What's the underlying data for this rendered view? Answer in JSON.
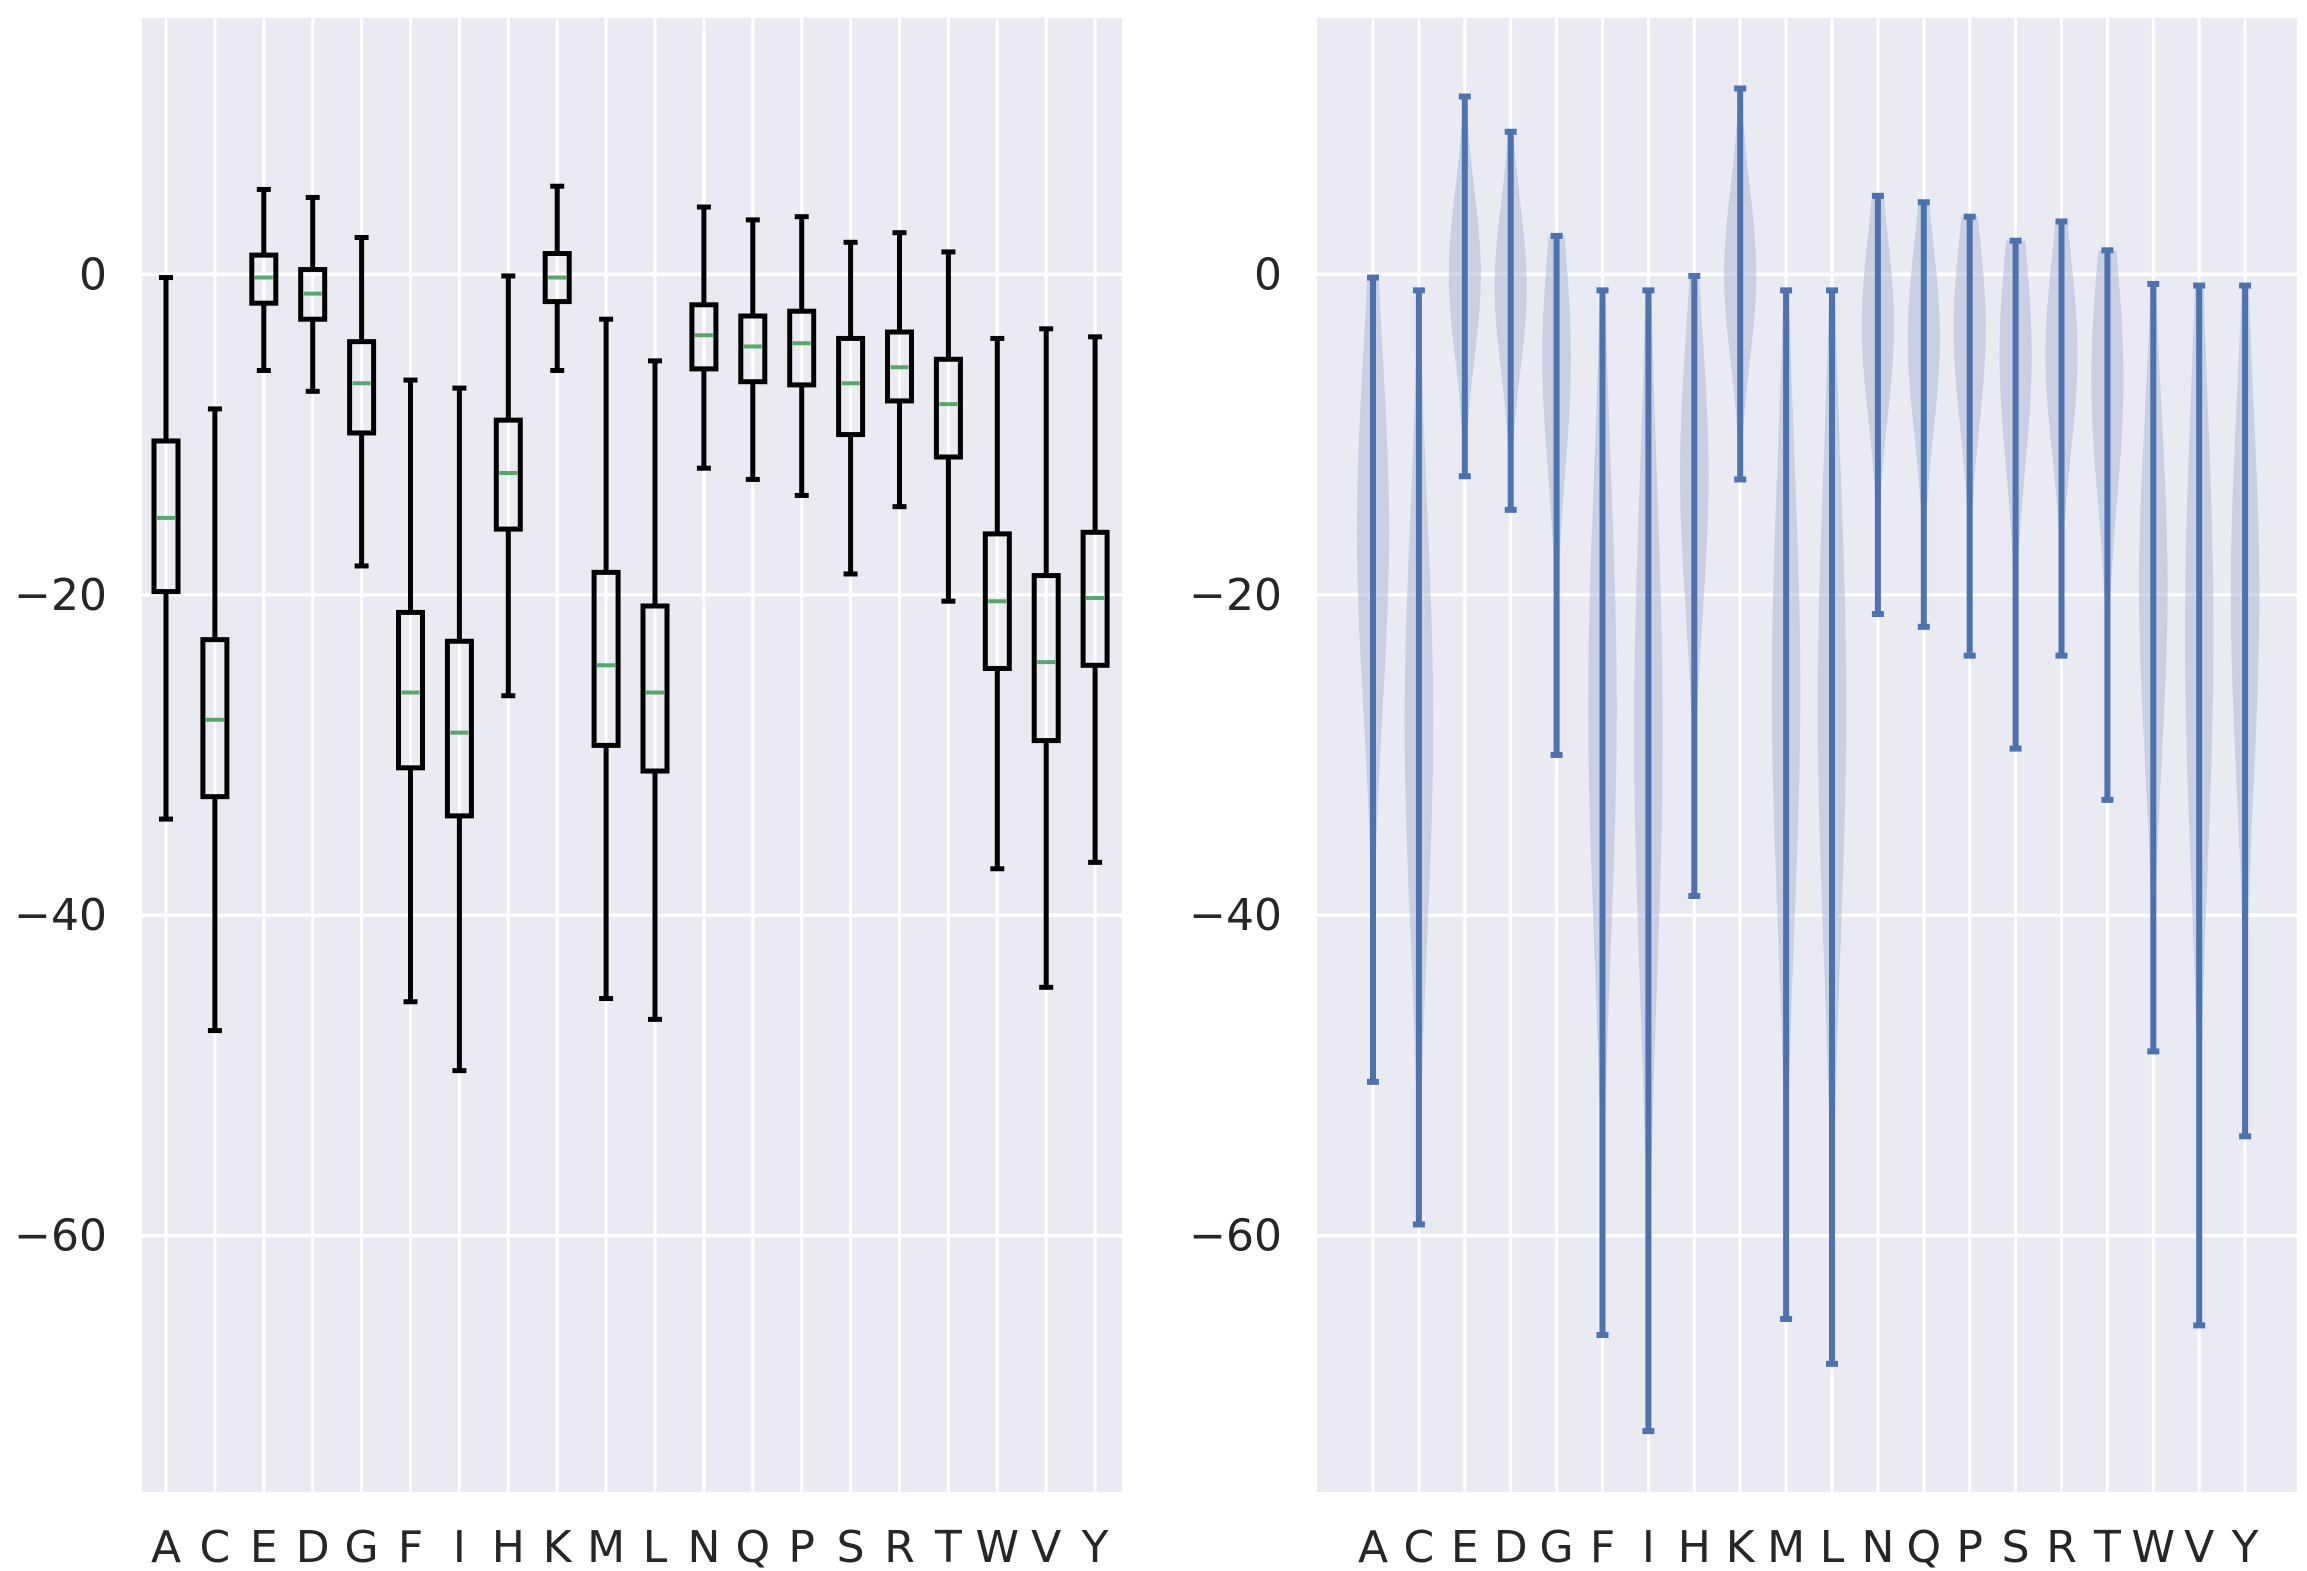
{
  "chart_data": [
    {
      "type": "box",
      "title": "",
      "xlabel": "",
      "ylabel": "",
      "ylim": [
        -76,
        16
      ],
      "yticks": [
        0,
        -20,
        -40,
        -60
      ],
      "ytick_labels": [
        "0",
        "−20",
        "−40",
        "−60"
      ],
      "grid": true,
      "categories": [
        "A",
        "C",
        "E",
        "D",
        "G",
        "F",
        "I",
        "H",
        "K",
        "M",
        "L",
        "N",
        "Q",
        "P",
        "S",
        "R",
        "T",
        "W",
        "V",
        "Y"
      ],
      "boxes": [
        {
          "min": -34,
          "q1": -19.8,
          "median": -15.2,
          "q3": -10.4,
          "max": -0.2
        },
        {
          "min": -47.2,
          "q1": -32.6,
          "median": -27.8,
          "q3": -22.8,
          "max": -8.4
        },
        {
          "min": -6,
          "q1": -1.8,
          "median": -0.2,
          "q3": 1.2,
          "max": 5.3
        },
        {
          "min": -7.3,
          "q1": -2.8,
          "median": -1.2,
          "q3": 0.3,
          "max": 4.8
        },
        {
          "min": -18.2,
          "q1": -9.9,
          "median": -6.8,
          "q3": -4.2,
          "max": 2.3
        },
        {
          "min": -45.4,
          "q1": -30.8,
          "median": -26.1,
          "q3": -21.1,
          "max": -6.6
        },
        {
          "min": -49.7,
          "q1": -33.8,
          "median": -28.6,
          "q3": -22.9,
          "max": -7.1
        },
        {
          "min": -26.3,
          "q1": -15.9,
          "median": -12.4,
          "q3": -9.1,
          "max": -0.1
        },
        {
          "min": -6,
          "q1": -1.7,
          "median": -0.2,
          "q3": 1.3,
          "max": 5.5
        },
        {
          "min": -45.2,
          "q1": -29.4,
          "median": -24.4,
          "q3": -18.6,
          "max": -2.8
        },
        {
          "min": -46.5,
          "q1": -31,
          "median": -26.1,
          "q3": -20.7,
          "max": -5.4
        },
        {
          "min": -12.1,
          "q1": -5.9,
          "median": -3.8,
          "q3": -1.9,
          "max": 4.2
        },
        {
          "min": -12.8,
          "q1": -6.7,
          "median": -4.5,
          "q3": -2.6,
          "max": 3.4
        },
        {
          "min": -13.8,
          "q1": -6.9,
          "median": -4.3,
          "q3": -2.3,
          "max": 3.6
        },
        {
          "min": -18.7,
          "q1": -10,
          "median": -6.8,
          "q3": -4,
          "max": 2
        },
        {
          "min": -14.5,
          "q1": -7.9,
          "median": -5.8,
          "q3": -3.6,
          "max": 2.6
        },
        {
          "min": -20.4,
          "q1": -11.4,
          "median": -8.1,
          "q3": -5.3,
          "max": 1.4
        },
        {
          "min": -37.1,
          "q1": -24.6,
          "median": -20.4,
          "q3": -16.2,
          "max": -4
        },
        {
          "min": -44.5,
          "q1": -29.1,
          "median": -24.2,
          "q3": -18.8,
          "max": -3.4
        },
        {
          "min": -36.7,
          "q1": -24.4,
          "median": -20.2,
          "q3": -16.1,
          "max": -3.9
        }
      ],
      "colors": {
        "box": "#000000",
        "median": "#55a868",
        "background": "#eaeaf2",
        "grid": "#ffffff"
      }
    },
    {
      "type": "violin",
      "title": "",
      "xlabel": "",
      "ylabel": "",
      "ylim": [
        -76,
        16
      ],
      "yticks": [
        0,
        -20,
        -40,
        -60
      ],
      "ytick_labels": [
        "0",
        "−20",
        "−40",
        "−60"
      ],
      "grid": true,
      "categories": [
        "A",
        "C",
        "E",
        "D",
        "G",
        "F",
        "I",
        "H",
        "K",
        "M",
        "L",
        "N",
        "Q",
        "P",
        "S",
        "R",
        "T",
        "W",
        "V",
        "Y"
      ],
      "violins": [
        {
          "min": -50.4,
          "max": -0.2,
          "center": -16,
          "width": 0.45
        },
        {
          "min": -59.3,
          "max": -1,
          "center": -28,
          "width": 0.4
        },
        {
          "min": -12.6,
          "max": 11.1,
          "center": 0,
          "width": 0.45
        },
        {
          "min": -14.7,
          "max": 8.9,
          "center": -0.8,
          "width": 0.45
        },
        {
          "min": -30,
          "max": 2.4,
          "center": -5.2,
          "width": 0.4
        },
        {
          "min": -66.2,
          "max": -1,
          "center": -27,
          "width": 0.4
        },
        {
          "min": -72.2,
          "max": -1,
          "center": -28.5,
          "width": 0.4
        },
        {
          "min": -38.8,
          "max": -0.1,
          "center": -12.5,
          "width": 0.4
        },
        {
          "min": -12.8,
          "max": 11.6,
          "center": 0,
          "width": 0.45
        },
        {
          "min": -65.2,
          "max": -1,
          "center": -26,
          "width": 0.4
        },
        {
          "min": -68,
          "max": -1,
          "center": -27,
          "width": 0.4
        },
        {
          "min": -21.2,
          "max": 4.9,
          "center": -3.2,
          "width": 0.45
        },
        {
          "min": -22,
          "max": 4.5,
          "center": -4,
          "width": 0.45
        },
        {
          "min": -23.8,
          "max": 3.6,
          "center": -3.4,
          "width": 0.45
        },
        {
          "min": -29.6,
          "max": 2.1,
          "center": -5,
          "width": 0.45
        },
        {
          "min": -23.8,
          "max": 3.3,
          "center": -5,
          "width": 0.45
        },
        {
          "min": -32.8,
          "max": 1.5,
          "center": -6.5,
          "width": 0.45
        },
        {
          "min": -48.5,
          "max": -0.6,
          "center": -19.5,
          "width": 0.4
        },
        {
          "min": -65.6,
          "max": -0.7,
          "center": -22.5,
          "width": 0.4
        },
        {
          "min": -53.8,
          "max": -0.7,
          "center": -20,
          "width": 0.4
        }
      ],
      "colors": {
        "line": "#4c72b0",
        "fill": "#aebad5",
        "background": "#eaeaf2",
        "grid": "#ffffff"
      }
    }
  ]
}
